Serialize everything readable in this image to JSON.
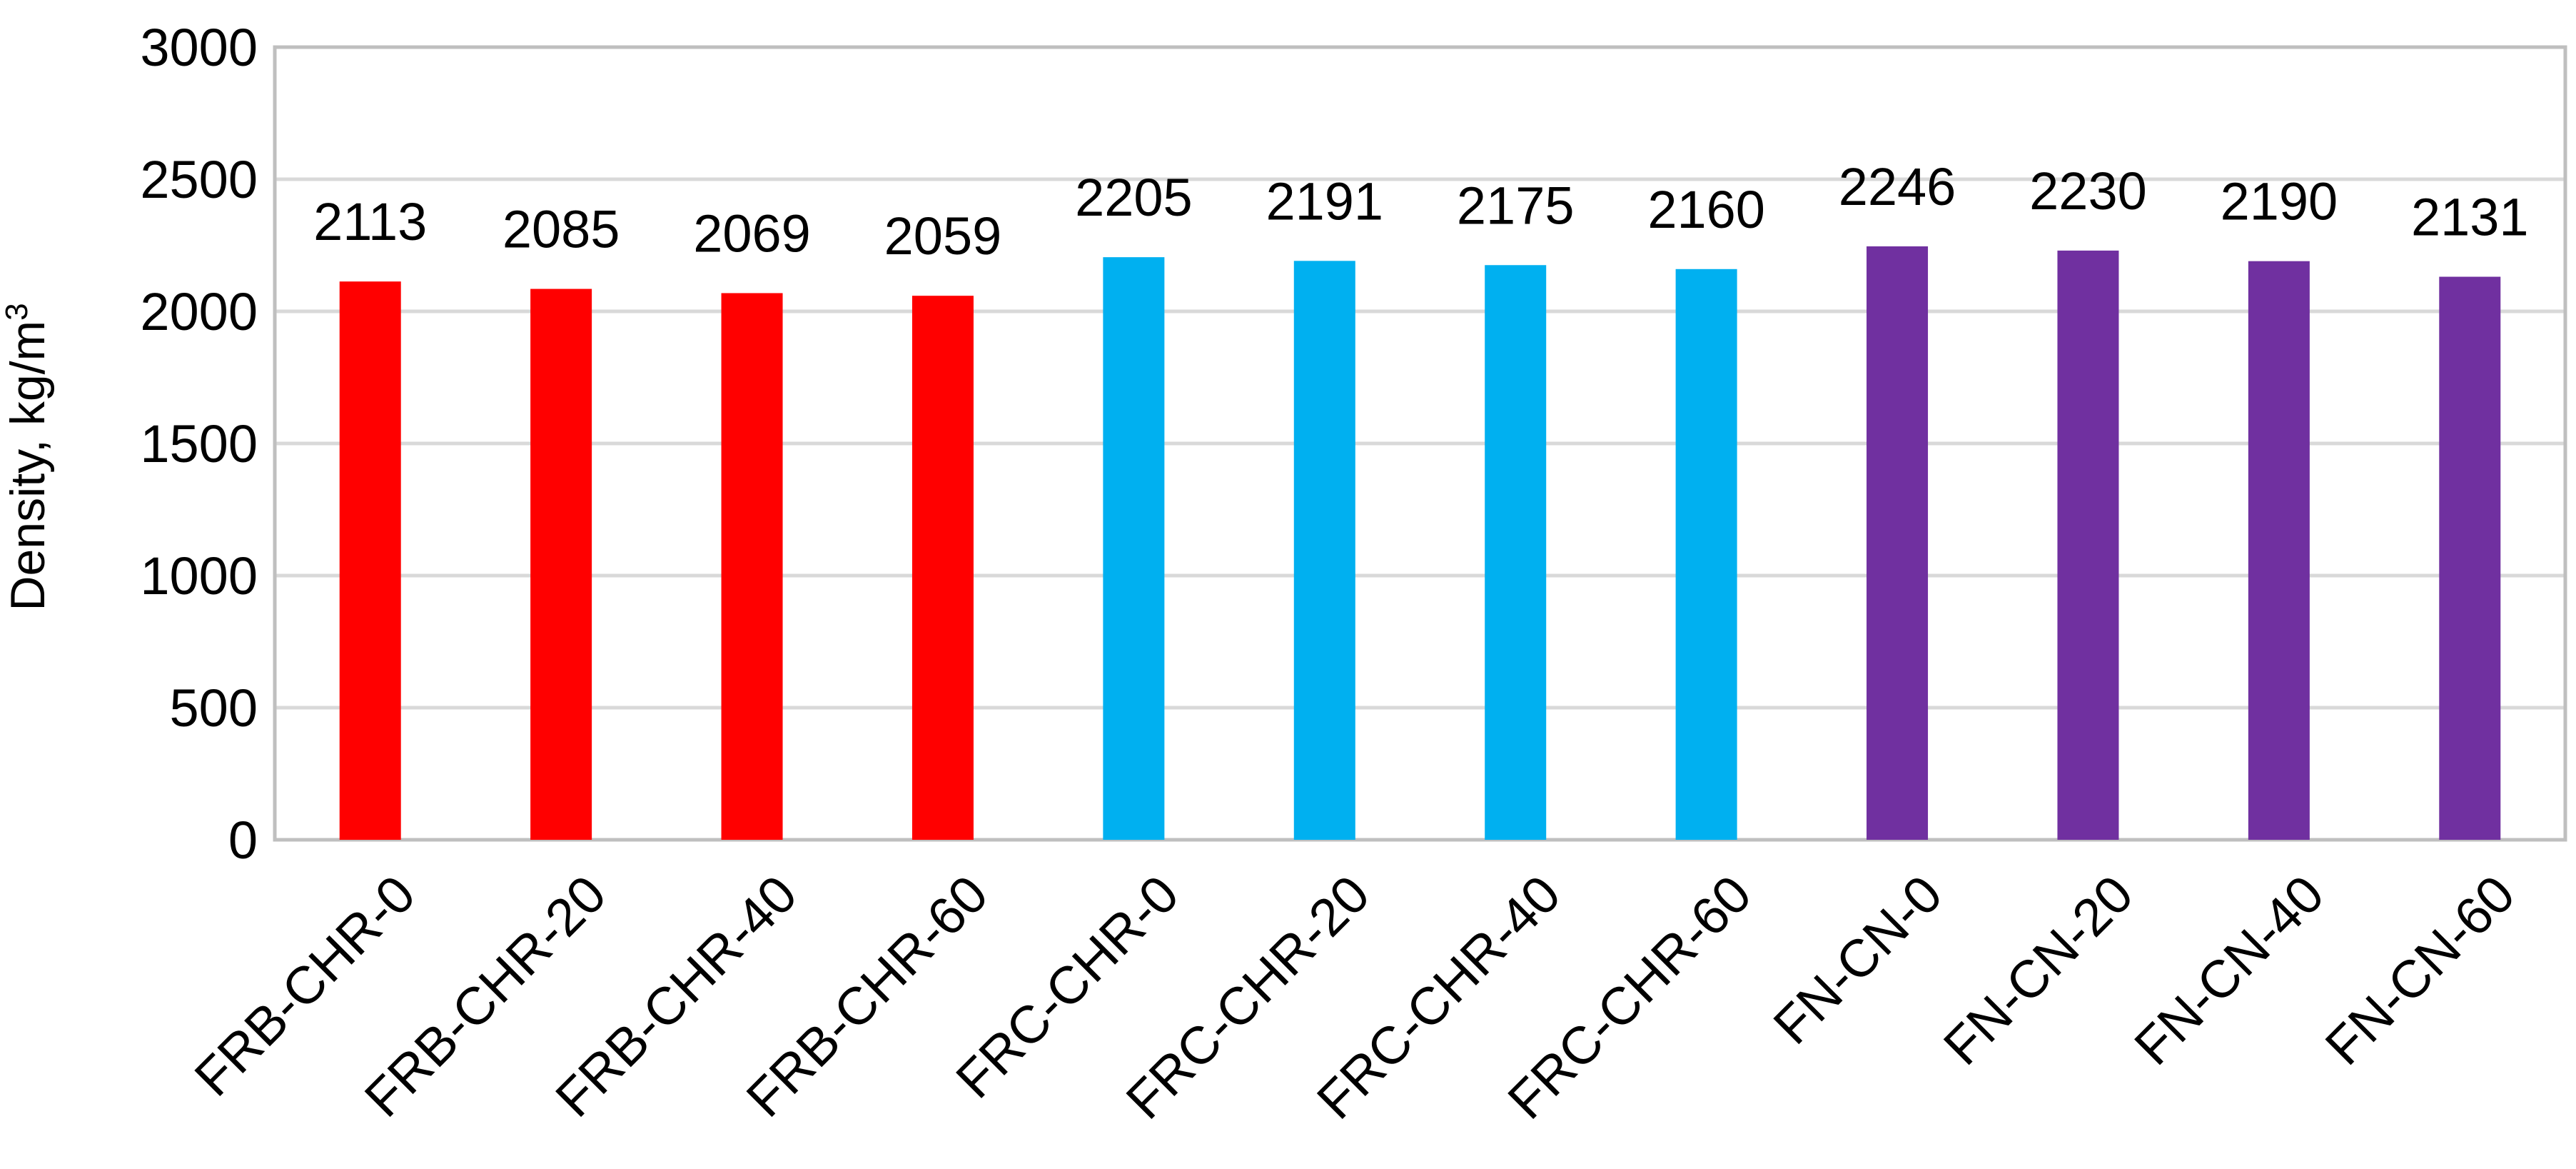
{
  "chart_data": {
    "type": "bar",
    "categories": [
      "FRB-CHR-0",
      "FRB-CHR-20",
      "FRB-CHR-40",
      "FRB-CHR-60",
      "FRC-CHR-0",
      "FRC-CHR-20",
      "FRC-CHR-40",
      "FRC-CHR-60",
      "FN-CN-0",
      "FN-CN-20",
      "FN-CN-40",
      "FN-CN-60"
    ],
    "values": [
      2113,
      2085,
      2069,
      2059,
      2205,
      2191,
      2175,
      2160,
      2246,
      2230,
      2190,
      2131
    ],
    "data_labels": [
      "2113",
      "2085",
      "2069",
      "2059",
      "2205",
      "2191",
      "2175",
      "2160",
      "2246",
      "2230",
      "2190",
      "2131"
    ],
    "bar_colors": [
      "#ff0000",
      "#ff0000",
      "#ff0000",
      "#ff0000",
      "#00b0f0",
      "#00b0f0",
      "#00b0f0",
      "#00b0f0",
      "#7030a0",
      "#7030a0",
      "#7030a0",
      "#7030a0"
    ],
    "title": "",
    "xlabel": "",
    "ylabel": "Density, kg/m",
    "ylabel_superscript": "3",
    "ylim": [
      0,
      3000
    ],
    "yticks": [
      0,
      500,
      1000,
      1500,
      2000,
      2500,
      3000
    ],
    "ytick_labels": [
      "0",
      "500",
      "1000",
      "1500",
      "2000",
      "2500",
      "3000"
    ],
    "grid": true,
    "legend": "none"
  }
}
